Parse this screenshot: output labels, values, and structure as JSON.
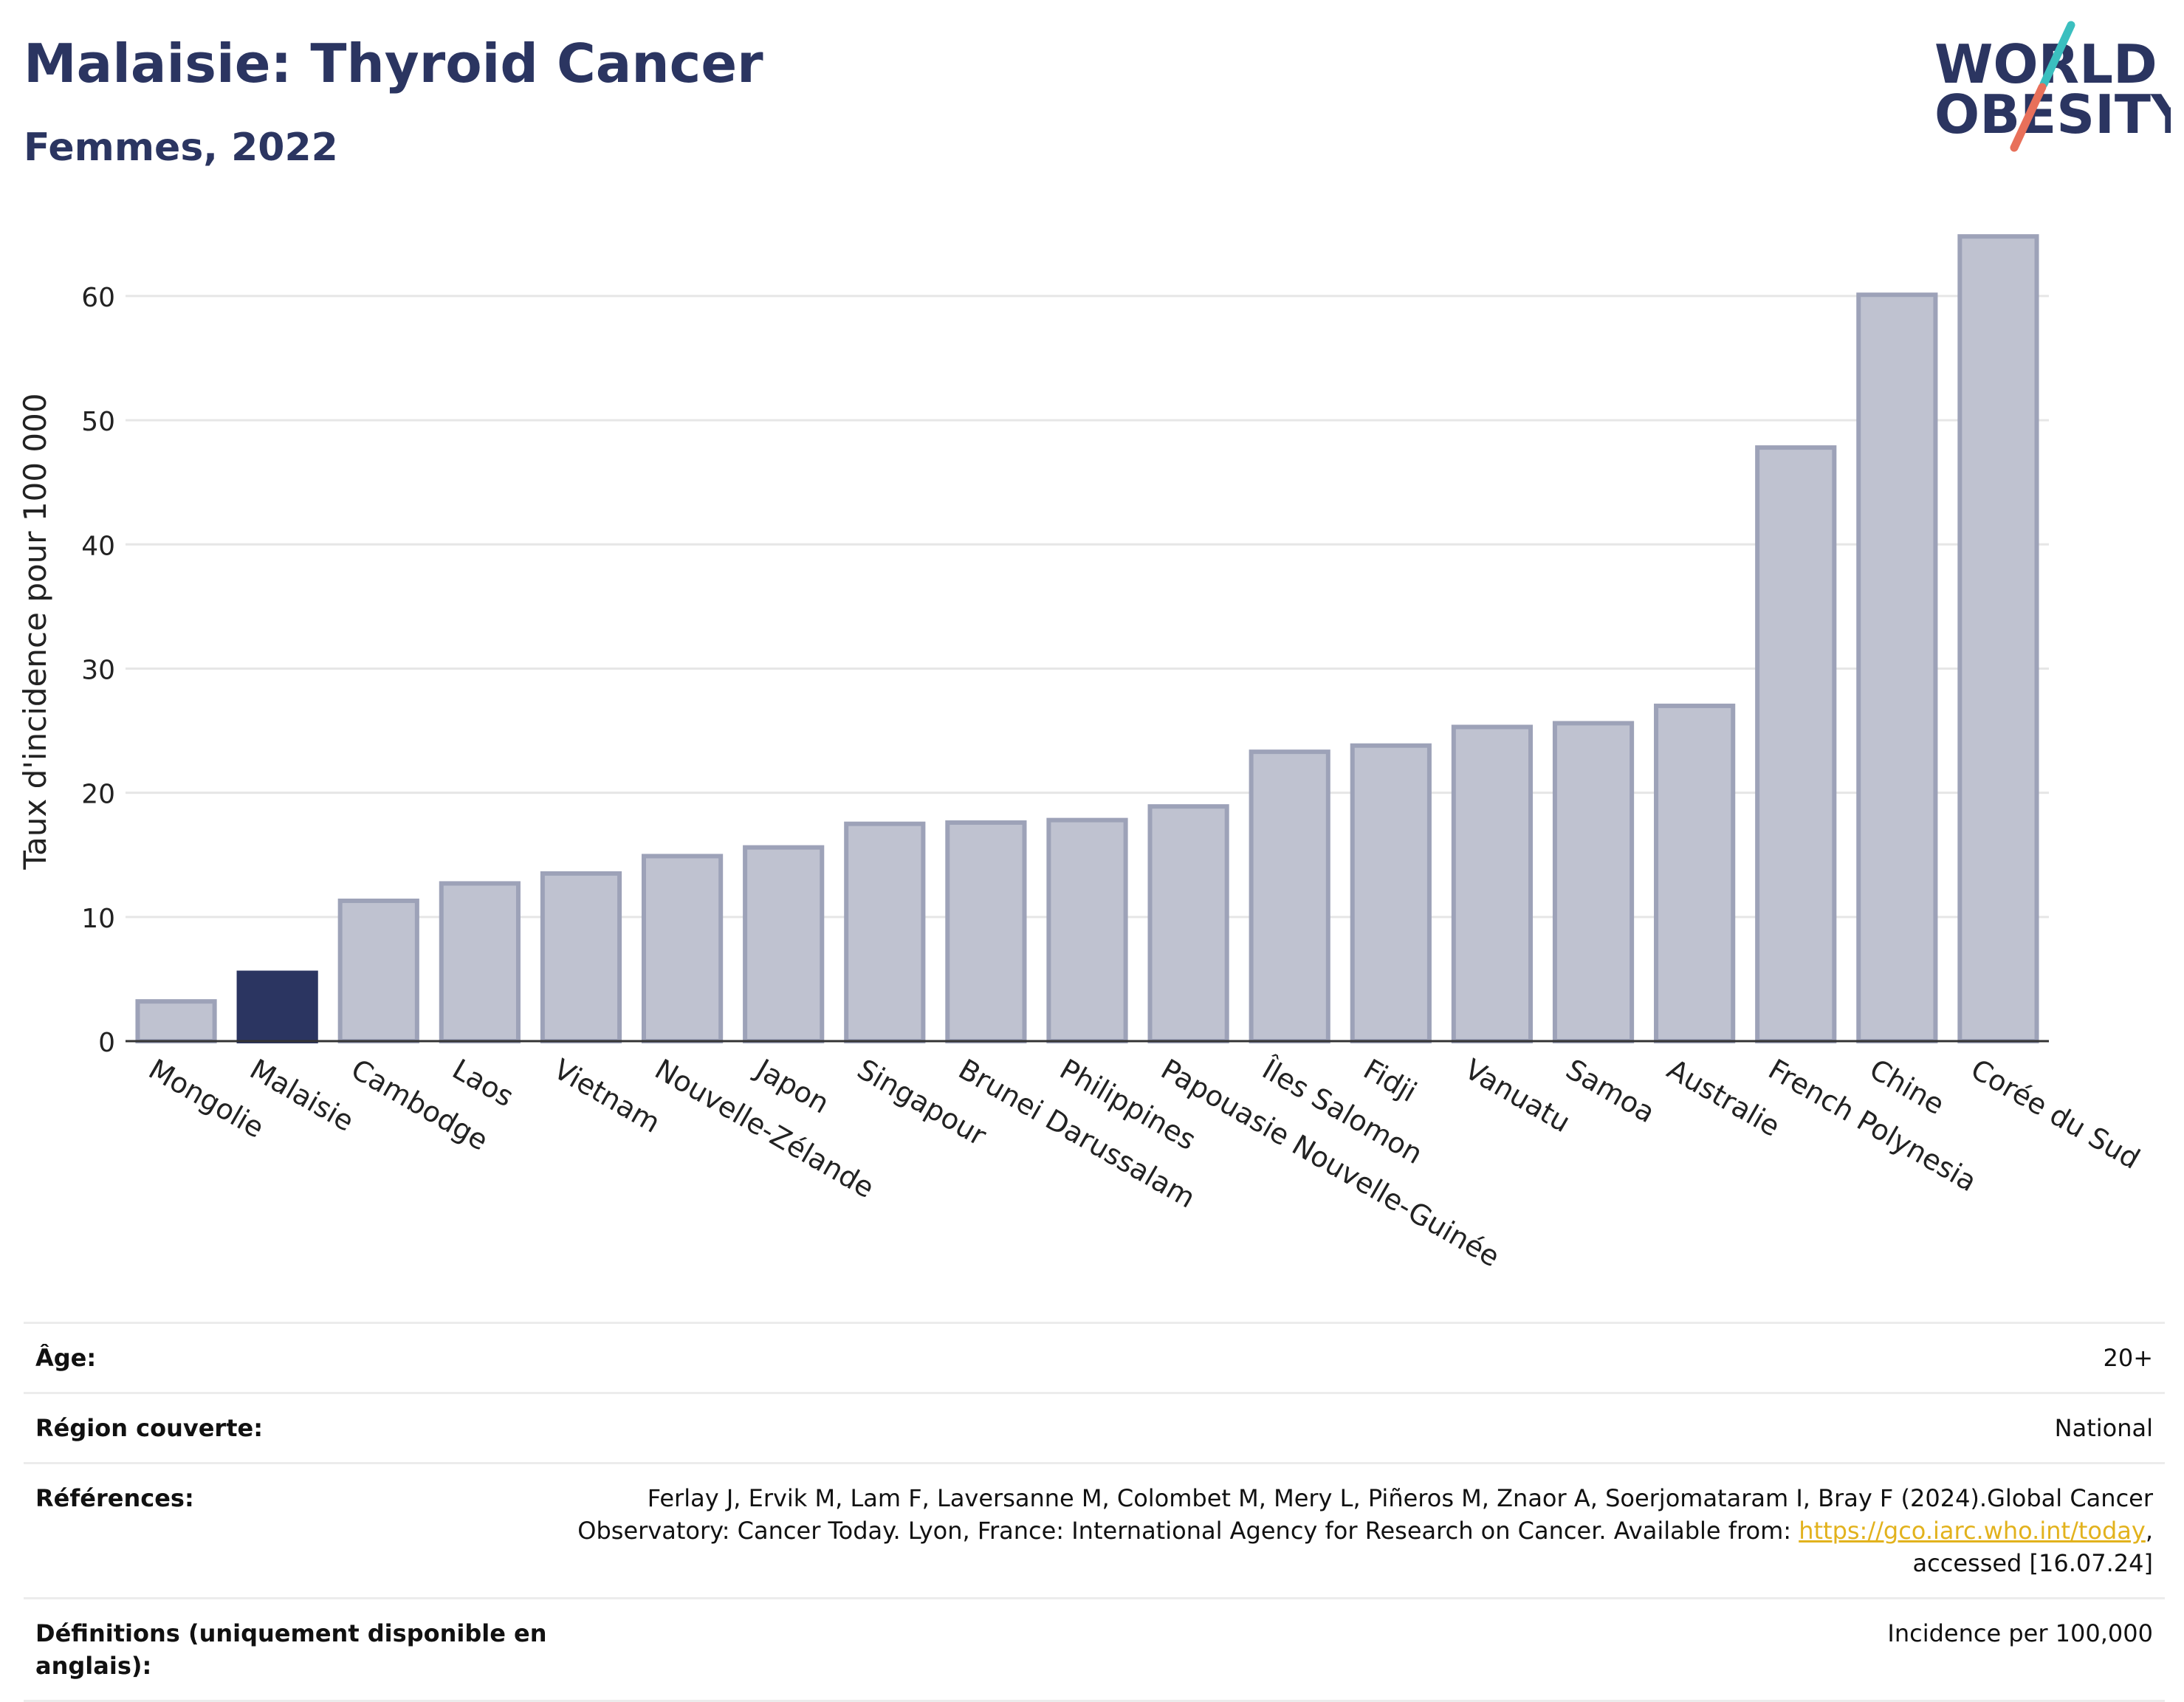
{
  "header": {
    "title": "Malaisie: Thyroid Cancer",
    "subtitle": "Femmes, 2022",
    "logo_line1": "WORLD",
    "logo_line2": "OBESITY"
  },
  "colors": {
    "bar_default": "#bfc2d0",
    "bar_default_border": "#9da2b8",
    "bar_highlight": "#2b3561",
    "title": "#2b3561",
    "gridline": "#e6e6e6",
    "link": "#e2b21d",
    "logo_teal": "#3bbfbf",
    "logo_coral": "#e8705a"
  },
  "chart_data": {
    "type": "bar",
    "ylabel": "Taux d'incidence pour 100 000",
    "xlabel": "",
    "ylim": [
      0,
      66
    ],
    "yticks": [
      0,
      10,
      20,
      30,
      40,
      50,
      60
    ],
    "grid": true,
    "highlight": "Malaisie",
    "categories": [
      "Mongolie",
      "Malaisie",
      "Cambodge",
      "Laos",
      "Vietnam",
      "Nouvelle-Zélande",
      "Japon",
      "Singapour",
      "Brunei Darussalam",
      "Philippines",
      "Papouasie Nouvelle-Guinée",
      "Îles Salomon",
      "Fidji",
      "Vanuatu",
      "Samoa",
      "Australie",
      "French Polynesia",
      "Chine",
      "Corée du Sud"
    ],
    "values": [
      3.2,
      5.5,
      11.3,
      12.7,
      13.5,
      14.9,
      15.6,
      17.5,
      17.6,
      17.8,
      18.9,
      23.3,
      23.8,
      25.3,
      25.6,
      27.0,
      47.8,
      60.1,
      64.8
    ]
  },
  "info": {
    "age_label": "Âge:",
    "age_value": "20+",
    "region_label": "Région couverte:",
    "region_value": "National",
    "refs_label": "Références:",
    "refs_line1": "Ferlay J, Ervik M, Lam F, Laversanne M, Colombet M, Mery L, Piñeros M, Znaor A, Soerjomataram I, Bray F (2024).Global Cancer",
    "refs_line2_pre": "Observatory: Cancer Today. Lyon, France: International Agency for Research on Cancer. Available from: ",
    "refs_link": "https://gco.iarc.who.int/today",
    "refs_line2_post": ",",
    "refs_line3": "accessed [16.07.24]",
    "defs_label": "Définitions (uniquement disponible en anglais):",
    "defs_value": "Incidence per 100,000"
  }
}
